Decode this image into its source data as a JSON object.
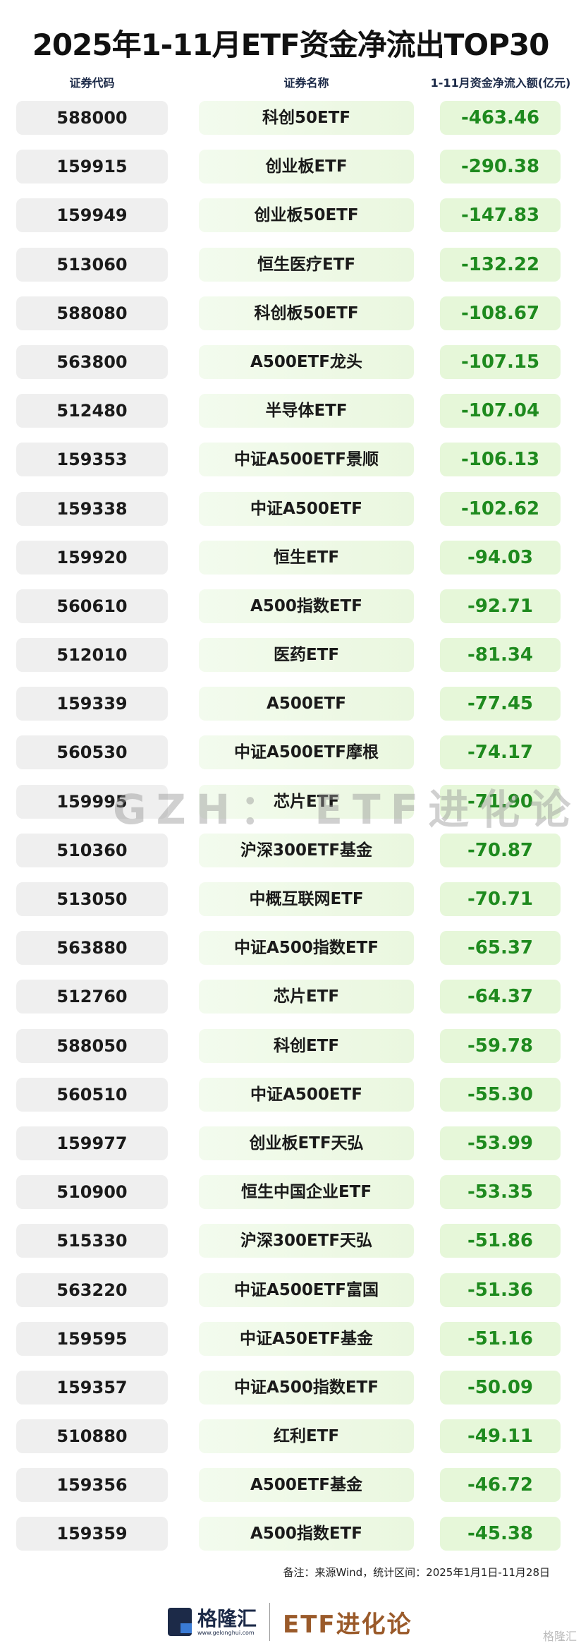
{
  "title": "2025年1-11月ETF资金净流出TOP30",
  "headers": {
    "code": "证券代码",
    "name": "证券名称",
    "value": "1-11月资金净流入额(亿元)"
  },
  "rows": [
    [
      "588000",
      "科创50ETF",
      "-463.46"
    ],
    [
      "159915",
      "创业板ETF",
      "-290.38"
    ],
    [
      "159949",
      "创业板50ETF",
      "-147.83"
    ],
    [
      "513060",
      "恒生医疗ETF",
      "-132.22"
    ],
    [
      "588080",
      "科创板50ETF",
      "-108.67"
    ],
    [
      "563800",
      "A500ETF龙头",
      "-107.15"
    ],
    [
      "512480",
      "半导体ETF",
      "-107.04"
    ],
    [
      "159353",
      "中证A500ETF景顺",
      "-106.13"
    ],
    [
      "159338",
      "中证A500ETF",
      "-102.62"
    ],
    [
      "159920",
      "恒生ETF",
      "-94.03"
    ],
    [
      "560610",
      "A500指数ETF",
      "-92.71"
    ],
    [
      "512010",
      "医药ETF",
      "-81.34"
    ],
    [
      "159339",
      "A500ETF",
      "-77.45"
    ],
    [
      "560530",
      "中证A500ETF摩根",
      "-74.17"
    ],
    [
      "159995",
      "芯片ETF",
      "-71.90"
    ],
    [
      "510360",
      "沪深300ETF基金",
      "-70.87"
    ],
    [
      "513050",
      "中概互联网ETF",
      "-70.71"
    ],
    [
      "563880",
      "中证A500指数ETF",
      "-65.37"
    ],
    [
      "512760",
      "芯片ETF",
      "-64.37"
    ],
    [
      "588050",
      "科创ETF",
      "-59.78"
    ],
    [
      "560510",
      "中证A500ETF",
      "-55.30"
    ],
    [
      "159977",
      "创业板ETF天弘",
      "-53.99"
    ],
    [
      "510900",
      "恒生中国企业ETF",
      "-53.35"
    ],
    [
      "515330",
      "沪深300ETF天弘",
      "-51.86"
    ],
    [
      "563220",
      "中证A500ETF富国",
      "-51.36"
    ],
    [
      "159595",
      "中证A50ETF基金",
      "-51.16"
    ],
    [
      "159357",
      "中证A500指数ETF",
      "-50.09"
    ],
    [
      "510880",
      "红利ETF",
      "-49.11"
    ],
    [
      "159356",
      "A500ETF基金",
      "-46.72"
    ],
    [
      "159359",
      "A500指数ETF",
      "-45.38"
    ]
  ],
  "watermark": "GZH： ETF进化论",
  "note": "备注：来源Wind，统计区间：2025年1月1日-11月28日",
  "footer": {
    "brand": "格隆汇",
    "url": "www.gelonghui.com",
    "column": "ETF进化论",
    "corner": "格隆汇"
  },
  "colors": {
    "negative": "#1e8a1e",
    "brand": "#1c2a48",
    "column": "#9a5a2a"
  }
}
